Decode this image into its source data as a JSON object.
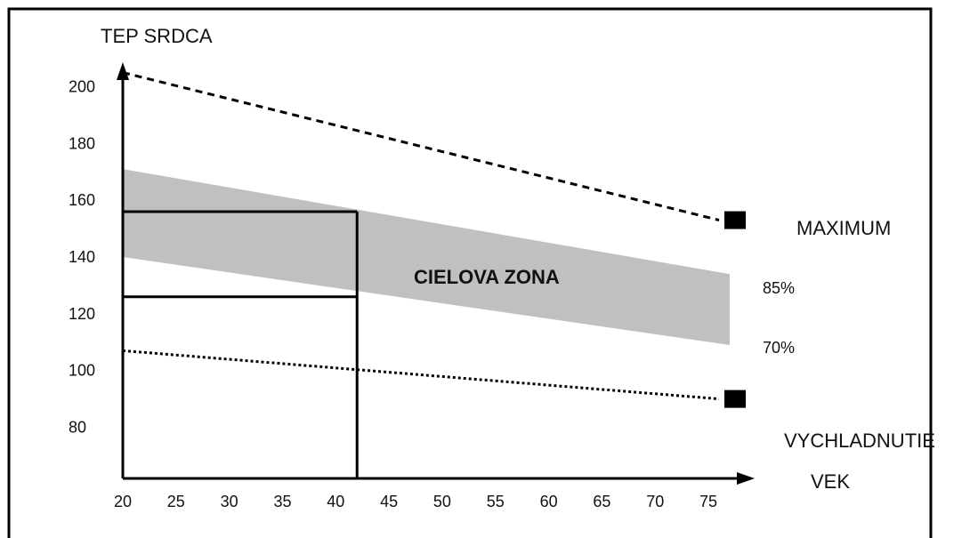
{
  "chart_data": {
    "type": "line",
    "title": "",
    "ylabel": "TEP SRDCA",
    "xlabel": "VEK",
    "x_ticks": [
      "20",
      "25",
      "30",
      "35",
      "40",
      "45",
      "50",
      "55",
      "60",
      "65",
      "70",
      "75"
    ],
    "y_ticks": [
      "200",
      "180",
      "160",
      "140",
      "120",
      "100",
      "80"
    ],
    "xlim": [
      20,
      77
    ],
    "ylim": [
      62,
      208
    ],
    "series": [
      {
        "name": "MAXIMUM",
        "style": "dashed",
        "points": [
          [
            20,
            205
          ],
          [
            76,
            153
          ]
        ]
      },
      {
        "name": "VYCHLADNUTIE",
        "style": "dotted",
        "points": [
          [
            20,
            107
          ],
          [
            76,
            90
          ]
        ]
      }
    ],
    "zone": {
      "label": "CIELOVA ZONA",
      "upper_label": "85%",
      "lower_label": "70%",
      "upper": [
        [
          20,
          171
        ],
        [
          77,
          134
        ]
      ],
      "lower": [
        [
          20,
          140
        ],
        [
          77,
          109
        ]
      ],
      "color": "#c0c0c0"
    },
    "example": {
      "age": 42,
      "hr_high": 156,
      "hr_low": 126
    },
    "markers": [
      {
        "series": "MAXIMUM",
        "x": 77,
        "y": 153
      },
      {
        "series": "VYCHLADNUTIE",
        "x": 77,
        "y": 90
      }
    ],
    "grid": false,
    "legend": "right"
  }
}
